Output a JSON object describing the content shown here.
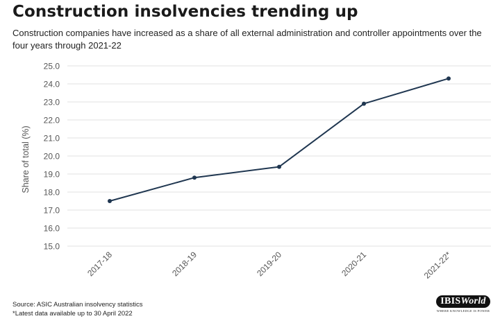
{
  "header": {
    "title": "Construction insolvencies trending up",
    "subtitle": "Construction companies have increased as a share of all external administration and controller appointments over the four years through 2021-22"
  },
  "chart_data": {
    "type": "line",
    "categories": [
      "2017-18",
      "2018-19",
      "2019-20",
      "2020-21",
      "2021-22*"
    ],
    "series": [
      {
        "values": [
          17.5,
          18.8,
          19.4,
          22.9,
          24.3
        ]
      }
    ],
    "ylabel": "Share of total (%)",
    "xlabel": "",
    "ylim": [
      15.0,
      25.0
    ],
    "yticks": [
      "15.0",
      "16.0",
      "17.0",
      "18.0",
      "19.0",
      "20.0",
      "21.0",
      "22.0",
      "23.0",
      "24.0",
      "25.0"
    ],
    "grid": true,
    "line_color": "#1f3650"
  },
  "footer": {
    "source": "Source: ASIC Australian insolvency statistics",
    "note": "*Latest data available up to 30 April 2022"
  },
  "logo": {
    "brand_prefix": "IBIS",
    "brand_suffix": "World",
    "tagline": "WHERE KNOWLEDGE IS POWER"
  }
}
